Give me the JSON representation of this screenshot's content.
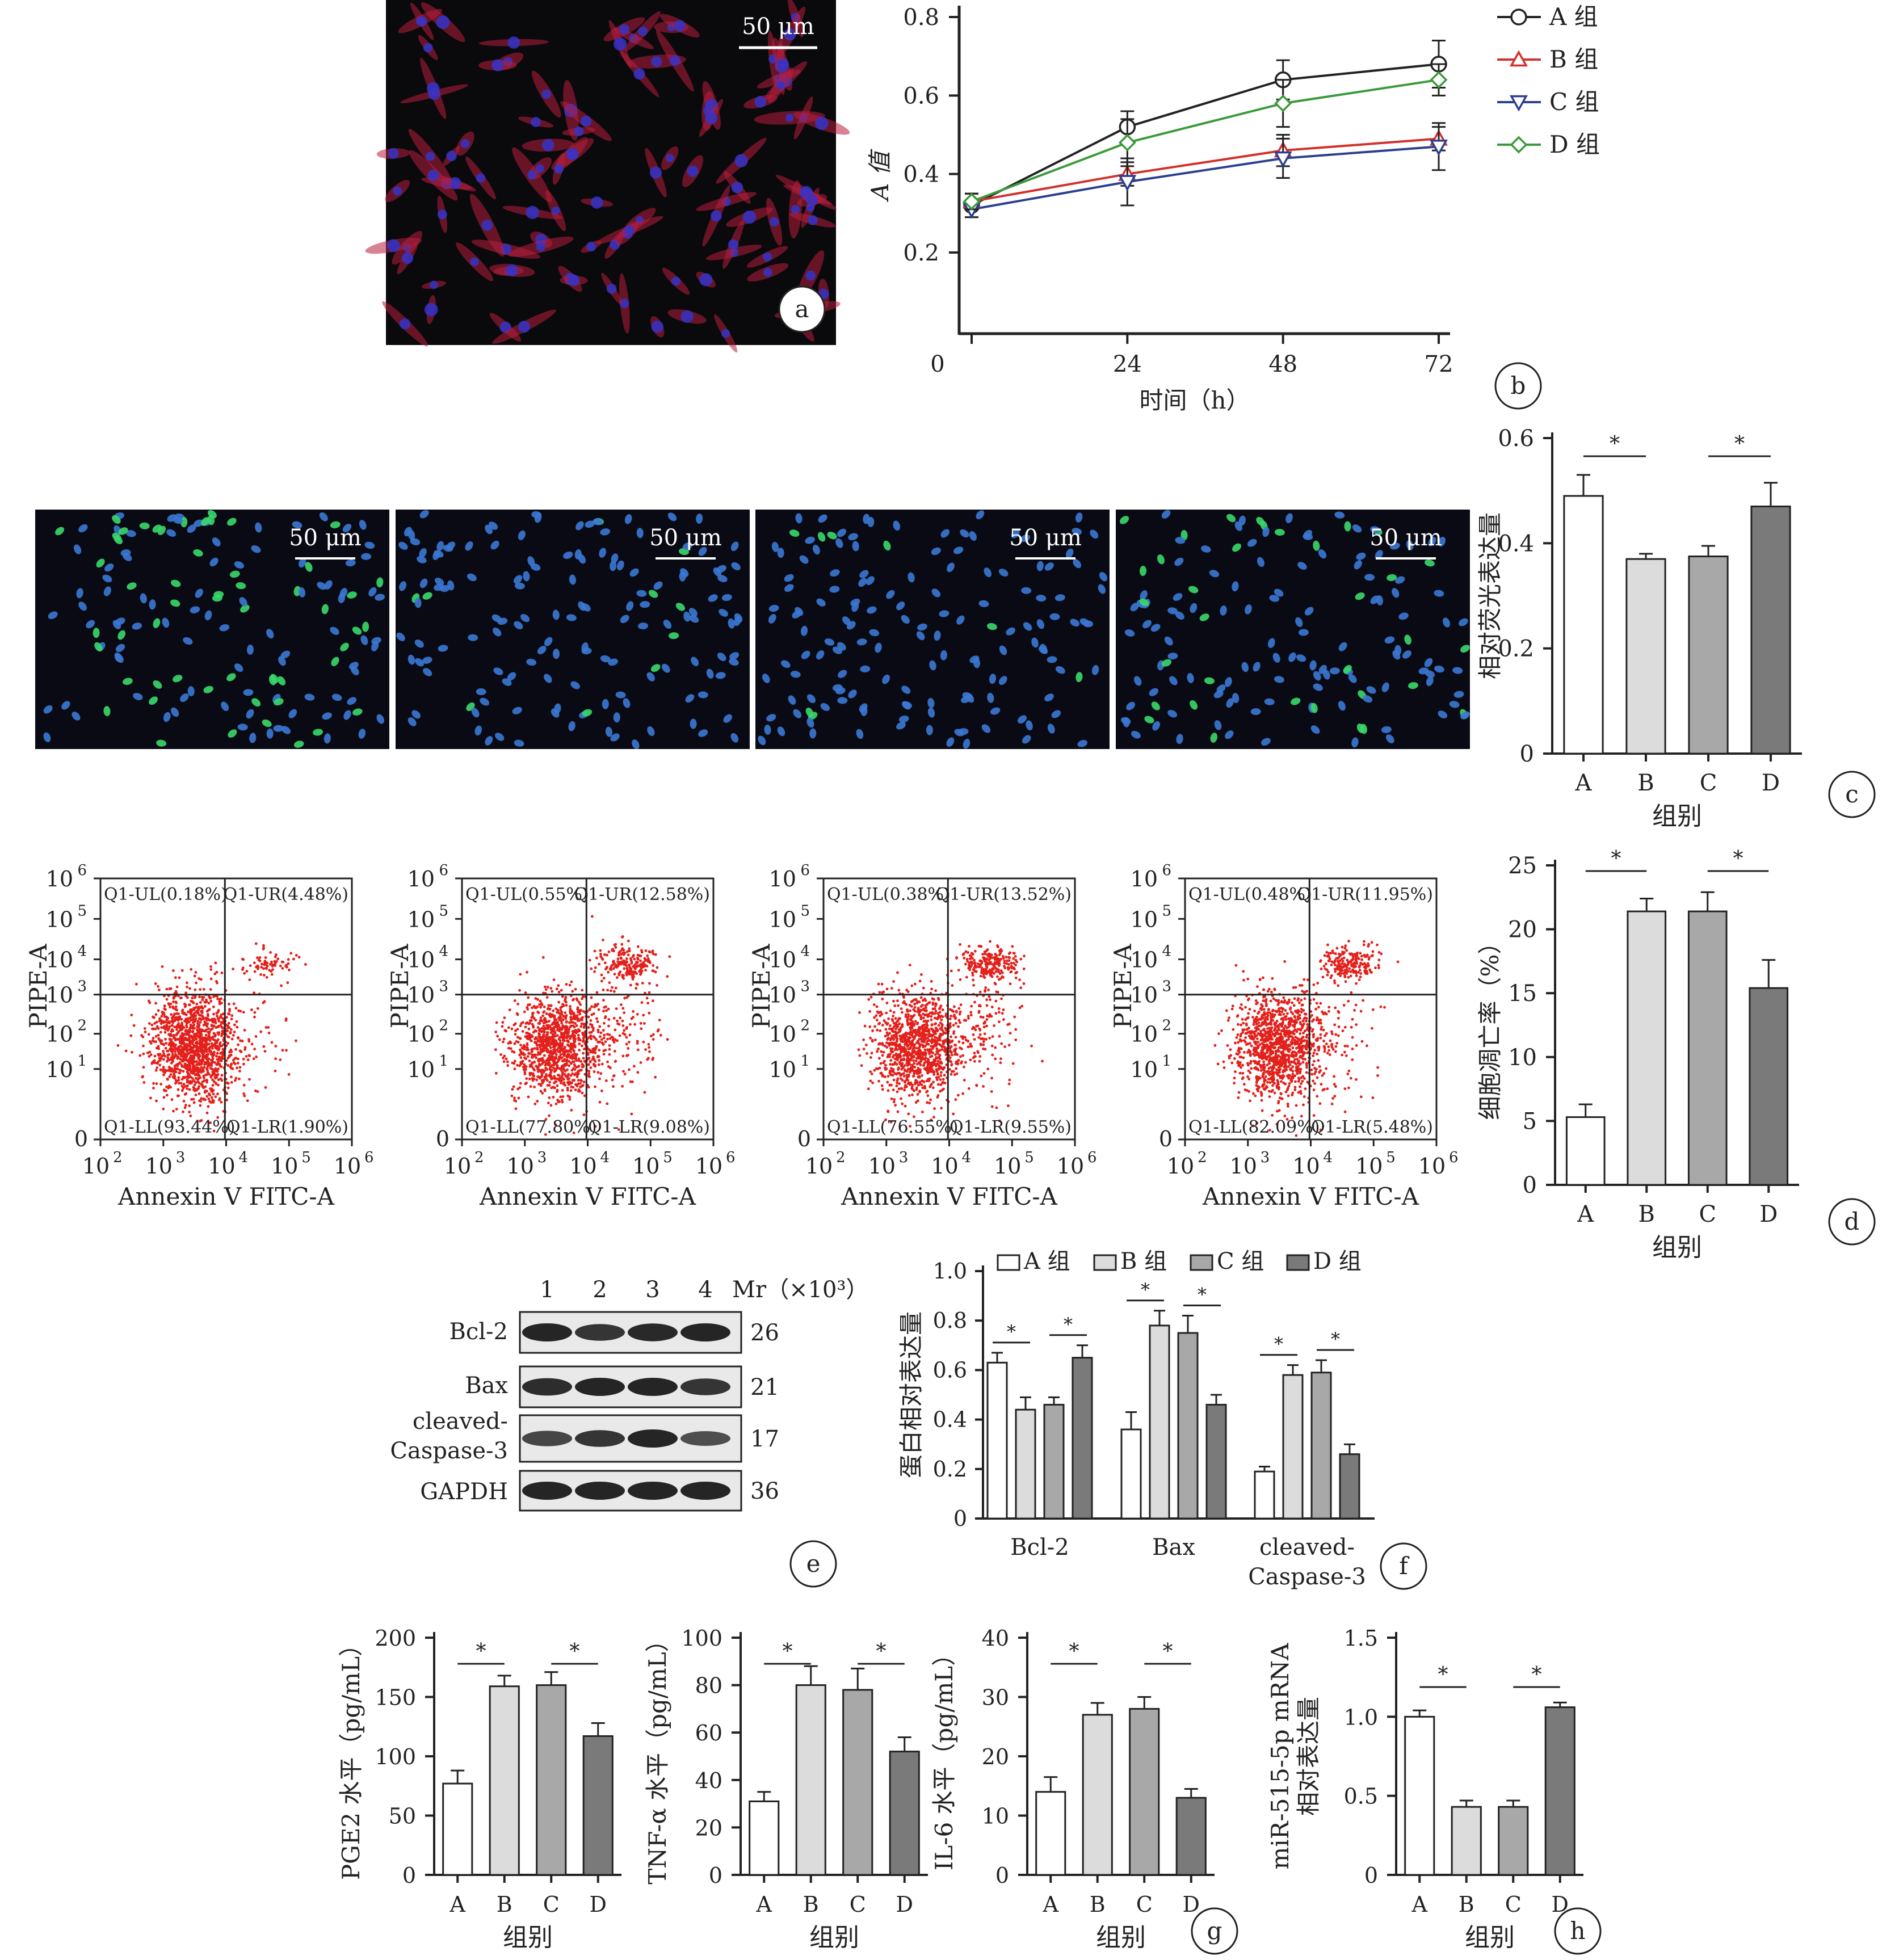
{
  "colors": {
    "black": "#222222",
    "red": "#d2302c",
    "blue": "#2c3f8f",
    "green": "#3a9a3a",
    "groupA": "#ffffff",
    "groupB": "#dcdcdc",
    "groupC": "#a8a8a8",
    "groupD": "#7a7a7a",
    "micrograph_bg": "#0a0a0c",
    "flow_dots": "#e3201b"
  },
  "panel_labels": {
    "a": "a",
    "b": "b",
    "c": "c",
    "d": "d",
    "e": "e",
    "f": "f",
    "g": "g",
    "h": "h"
  },
  "scalebar": "50 μm",
  "chart_b": {
    "ylabel": "A 值",
    "xlabel": "时间（h）",
    "xticks": [
      "0",
      "24",
      "48",
      "72"
    ],
    "yticks": [
      "0.2",
      "0.4",
      "0.6",
      "0.8"
    ],
    "series": [
      {
        "name": "A 组",
        "marker": "circle",
        "color": "#222222",
        "x": [
          0,
          24,
          48,
          72
        ],
        "y": [
          0.32,
          0.52,
          0.64,
          0.68
        ],
        "err": [
          0.03,
          0.04,
          0.05,
          0.06
        ]
      },
      {
        "name": "B 组",
        "marker": "triangle-up",
        "color": "#d2302c",
        "x": [
          0,
          24,
          48,
          72
        ],
        "y": [
          0.33,
          0.4,
          0.46,
          0.49
        ],
        "err": [
          0.02,
          0.03,
          0.04,
          0.03
        ]
      },
      {
        "name": "C 组",
        "marker": "triangle-down",
        "color": "#2c3f8f",
        "x": [
          0,
          24,
          48,
          72
        ],
        "y": [
          0.31,
          0.38,
          0.44,
          0.47
        ],
        "err": [
          0.02,
          0.06,
          0.05,
          0.06
        ]
      },
      {
        "name": "D 组",
        "marker": "diamond",
        "color": "#3a9a3a",
        "x": [
          0,
          24,
          48,
          72
        ],
        "y": [
          0.33,
          0.48,
          0.58,
          0.64
        ],
        "err": [
          0.02,
          0.06,
          0.06,
          0.04
        ]
      }
    ]
  },
  "chart_c": {
    "ylabel": "相对荧光表达量",
    "xlabel": "组别",
    "categories": [
      "A",
      "B",
      "C",
      "D"
    ],
    "values": [
      0.49,
      0.37,
      0.375,
      0.47
    ],
    "err": [
      0.04,
      0.01,
      0.02,
      0.045
    ],
    "yticks": [
      "0",
      "0.2",
      "0.4",
      "0.6"
    ],
    "sig": "*"
  },
  "chart_d": {
    "ylabel": "细胞凋亡率（%）",
    "xlabel": "组别",
    "categories": [
      "A",
      "B",
      "C",
      "D"
    ],
    "values": [
      5.3,
      21.4,
      21.4,
      15.4
    ],
    "err": [
      1.0,
      1.0,
      1.5,
      2.2
    ],
    "yticks": [
      "0",
      "5",
      "10",
      "15",
      "20",
      "25"
    ],
    "sig": "*"
  },
  "flow": {
    "xlabel": "Annexin V FITC-A",
    "ylabel": "PIPE-A",
    "ticks": [
      "0",
      "10",
      "10",
      "10",
      "10",
      "10",
      "10"
    ],
    "tick_exp": [
      "",
      "1",
      "2",
      "3",
      "4",
      "5",
      "6"
    ],
    "xticks": [
      "10",
      "10",
      "10",
      "10",
      "10"
    ],
    "xtick_exp": [
      "2",
      "3",
      "4",
      "5",
      "6"
    ],
    "plots": [
      {
        "UL": "Q1-UL(0.18%)",
        "UR": "Q1-UR(4.48%)",
        "LL": "Q1-LL(93.44%)",
        "LR": "Q1-LR(1.90%)"
      },
      {
        "UL": "Q1-UL(0.55%)",
        "UR": "Q1-UR(12.58%)",
        "LL": "Q1-LL(77.80%)",
        "LR": "Q1-LR(9.08%)"
      },
      {
        "UL": "Q1-UL(0.38%)",
        "UR": "Q1-UR(13.52%)",
        "LL": "Q1-LL(76.55%)",
        "LR": "Q1-LR(9.55%)"
      },
      {
        "UL": "Q1-UL(0.48%)",
        "UR": "Q1-UR(11.95%)",
        "LL": "Q1-LL(82.09%)",
        "LR": "Q1-LR(5.48%)"
      }
    ]
  },
  "blot": {
    "lanes": [
      "1",
      "2",
      "3",
      "4"
    ],
    "mr_header": "Mr（×10³）",
    "rows": [
      {
        "label": "Bcl-2",
        "mr": "26"
      },
      {
        "label": "Bax",
        "mr": "21"
      },
      {
        "label": "cleaved-",
        "label2": "Caspase-3",
        "mr": "17"
      },
      {
        "label": "GAPDH",
        "mr": "36"
      }
    ]
  },
  "chart_f": {
    "ylabel": "蛋白相对表达量",
    "legend": [
      "A 组",
      "B 组",
      "C 组",
      "D 组"
    ],
    "categories": [
      "Bcl-2",
      "Bax",
      "cleaved-",
      "Caspase-3"
    ],
    "yticks": [
      "0",
      "0.2",
      "0.4",
      "0.6",
      "0.8",
      "1.0"
    ],
    "series": [
      [
        0.63,
        0.36,
        0.19
      ],
      [
        0.44,
        0.78,
        0.58
      ],
      [
        0.46,
        0.75,
        0.59
      ],
      [
        0.65,
        0.46,
        0.26
      ]
    ],
    "err": [
      [
        0.04,
        0.07,
        0.02
      ],
      [
        0.05,
        0.06,
        0.04
      ],
      [
        0.03,
        0.07,
        0.05
      ],
      [
        0.05,
        0.04,
        0.04
      ]
    ],
    "sig": "*"
  },
  "chart_g": [
    {
      "ylabel": "PGE2 水平（pg/mL）",
      "yticks": [
        "0",
        "50",
        "100",
        "150",
        "200"
      ],
      "values": [
        77,
        159,
        160,
        117
      ],
      "err": [
        11,
        9,
        11,
        11
      ],
      "ymax": 200
    },
    {
      "ylabel": "TNF-α 水平（pg/mL）",
      "yticks": [
        "0",
        "20",
        "40",
        "60",
        "80",
        "100"
      ],
      "values": [
        31,
        80,
        78,
        52
      ],
      "err": [
        4,
        8,
        9,
        6
      ],
      "ymax": 100
    },
    {
      "ylabel": "IL-6 水平（pg/mL）",
      "yticks": [
        "0",
        "10",
        "20",
        "30",
        "40"
      ],
      "values": [
        14,
        27,
        28,
        13
      ],
      "err": [
        2.5,
        2,
        2,
        1.5
      ],
      "ymax": 40
    }
  ],
  "chart_h": {
    "ylabel": "miR-515-5p mRNA",
    "ylabel2": "相对表达量",
    "yticks": [
      "0",
      "0.5",
      "1.0",
      "1.5"
    ],
    "values": [
      1.0,
      0.43,
      0.43,
      1.06
    ],
    "err": [
      0.04,
      0.04,
      0.04,
      0.03
    ],
    "ymax": 1.5
  },
  "group_xlabel": "组别",
  "categories": [
    "A",
    "B",
    "C",
    "D"
  ]
}
